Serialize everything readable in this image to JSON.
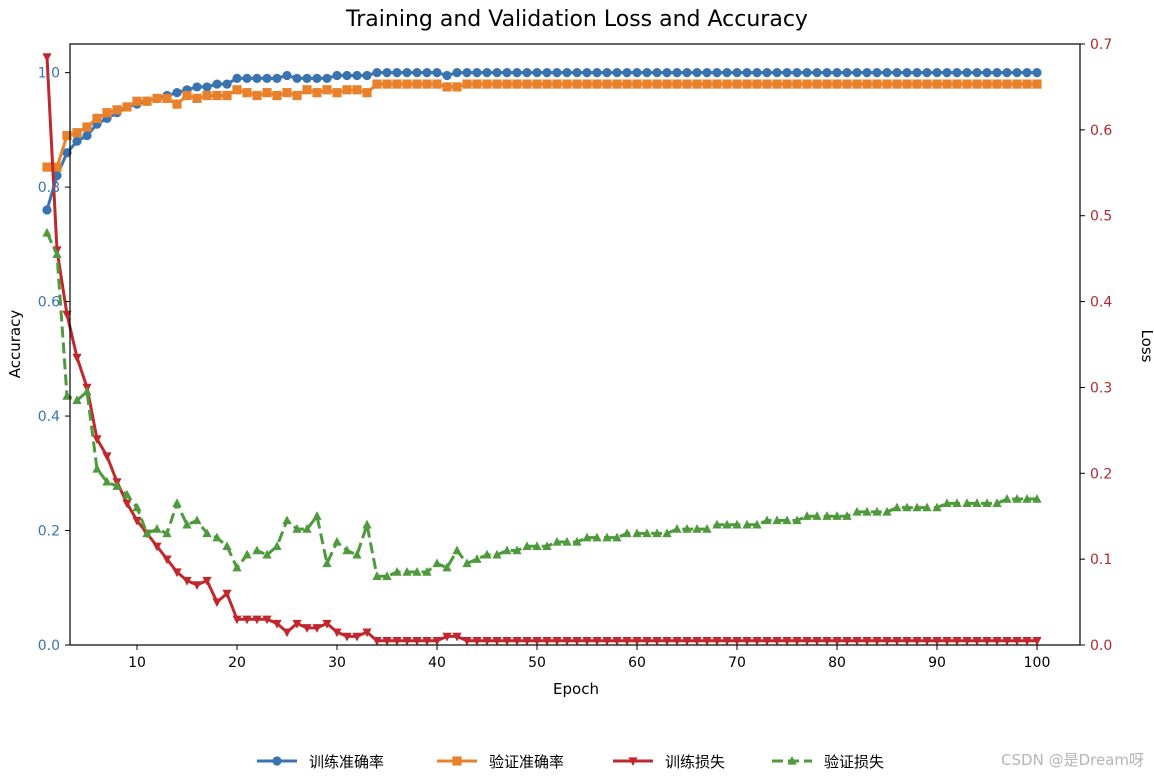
{
  "chart_data": {
    "type": "line",
    "title": "Training and Validation Loss and Accuracy",
    "xlabel": "Epoch",
    "ylabel_left": "Accuracy",
    "ylabel_right": "Loss",
    "xlim": [
      1,
      100
    ],
    "x_ticks": [
      10,
      20,
      30,
      40,
      50,
      60,
      70,
      80,
      90,
      100
    ],
    "ylim_left": [
      0,
      1.05
    ],
    "y_ticks_left": [
      "0.0",
      "0.2",
      "0.4",
      "0.6",
      "0.8",
      "1.0"
    ],
    "ylim_right": [
      0,
      0.7
    ],
    "y_ticks_right": [
      "0.0",
      "0.1",
      "0.2",
      "0.3",
      "0.4",
      "0.5",
      "0.6",
      "0.7"
    ],
    "grid": false,
    "legend_position": "bottom-center",
    "series": [
      {
        "name": "训练准确率",
        "axis": "left",
        "color": "#3a74b0",
        "marker": "circle",
        "dash": "solid",
        "values": [
          0.76,
          0.82,
          0.86,
          0.88,
          0.89,
          0.91,
          0.92,
          0.93,
          0.94,
          0.945,
          0.95,
          0.955,
          0.96,
          0.965,
          0.97,
          0.975,
          0.975,
          0.98,
          0.98,
          0.99,
          0.99,
          0.99,
          0.99,
          0.99,
          0.995,
          0.99,
          0.99,
          0.99,
          0.99,
          0.995,
          0.995,
          0.995,
          0.995,
          1.0,
          1.0,
          1.0,
          1.0,
          1.0,
          1.0,
          1.0,
          0.995,
          1.0,
          1.0,
          1.0,
          1.0,
          1.0,
          1.0,
          1.0,
          1.0,
          1.0,
          1.0,
          1.0,
          1.0,
          1.0,
          1.0,
          1.0,
          1.0,
          1.0,
          1.0,
          1.0,
          1.0,
          1.0,
          1.0,
          1.0,
          1.0,
          1.0,
          1.0,
          1.0,
          1.0,
          1.0,
          1.0,
          1.0,
          1.0,
          1.0,
          1.0,
          1.0,
          1.0,
          1.0,
          1.0,
          1.0,
          1.0,
          1.0,
          1.0,
          1.0,
          1.0,
          1.0,
          1.0,
          1.0,
          1.0,
          1.0,
          1.0,
          1.0,
          1.0,
          1.0,
          1.0,
          1.0,
          1.0,
          1.0,
          1.0,
          1.0
        ]
      },
      {
        "name": "验证准确率",
        "axis": "left",
        "color": "#e8812b",
        "marker": "square",
        "dash": "solid",
        "values": [
          0.835,
          0.835,
          0.89,
          0.895,
          0.905,
          0.92,
          0.93,
          0.935,
          0.94,
          0.95,
          0.95,
          0.955,
          0.955,
          0.945,
          0.96,
          0.955,
          0.96,
          0.96,
          0.96,
          0.97,
          0.965,
          0.96,
          0.965,
          0.96,
          0.965,
          0.96,
          0.97,
          0.965,
          0.97,
          0.965,
          0.97,
          0.97,
          0.965,
          0.98,
          0.98,
          0.98,
          0.98,
          0.98,
          0.98,
          0.98,
          0.975,
          0.975,
          0.98,
          0.98,
          0.98,
          0.98,
          0.98,
          0.98,
          0.98,
          0.98,
          0.98,
          0.98,
          0.98,
          0.98,
          0.98,
          0.98,
          0.98,
          0.98,
          0.98,
          0.98,
          0.98,
          0.98,
          0.98,
          0.98,
          0.98,
          0.98,
          0.98,
          0.98,
          0.98,
          0.98,
          0.98,
          0.98,
          0.98,
          0.98,
          0.98,
          0.98,
          0.98,
          0.98,
          0.98,
          0.98,
          0.98,
          0.98,
          0.98,
          0.98,
          0.98,
          0.98,
          0.98,
          0.98,
          0.98,
          0.98,
          0.98,
          0.98,
          0.98,
          0.98,
          0.98,
          0.98,
          0.98,
          0.98,
          0.98,
          0.98
        ]
      },
      {
        "name": "训练损失",
        "axis": "right",
        "color": "#c0282d",
        "marker": "triangle-down",
        "dash": "solid",
        "values": [
          0.685,
          0.46,
          0.385,
          0.335,
          0.3,
          0.24,
          0.22,
          0.19,
          0.165,
          0.145,
          0.13,
          0.115,
          0.1,
          0.085,
          0.075,
          0.07,
          0.075,
          0.05,
          0.06,
          0.03,
          0.03,
          0.03,
          0.03,
          0.025,
          0.015,
          0.025,
          0.02,
          0.02,
          0.025,
          0.015,
          0.01,
          0.01,
          0.015,
          0.005,
          0.005,
          0.005,
          0.005,
          0.005,
          0.005,
          0.005,
          0.01,
          0.01,
          0.005,
          0.005,
          0.005,
          0.005,
          0.005,
          0.005,
          0.005,
          0.005,
          0.005,
          0.005,
          0.005,
          0.005,
          0.005,
          0.005,
          0.005,
          0.005,
          0.005,
          0.005,
          0.005,
          0.005,
          0.005,
          0.005,
          0.005,
          0.005,
          0.005,
          0.005,
          0.005,
          0.005,
          0.005,
          0.005,
          0.005,
          0.005,
          0.005,
          0.005,
          0.005,
          0.005,
          0.005,
          0.005,
          0.005,
          0.005,
          0.005,
          0.005,
          0.005,
          0.005,
          0.005,
          0.005,
          0.005,
          0.005,
          0.005,
          0.005,
          0.005,
          0.005,
          0.005,
          0.005,
          0.005,
          0.005,
          0.005,
          0.005
        ]
      },
      {
        "name": "验证损失",
        "axis": "right",
        "color": "#4e9a3c",
        "marker": "triangle-up",
        "dash": "dashed",
        "values": [
          0.48,
          0.455,
          0.29,
          0.285,
          0.295,
          0.205,
          0.19,
          0.185,
          0.175,
          0.16,
          0.13,
          0.135,
          0.13,
          0.165,
          0.14,
          0.145,
          0.13,
          0.125,
          0.115,
          0.09,
          0.105,
          0.11,
          0.105,
          0.115,
          0.145,
          0.135,
          0.135,
          0.15,
          0.095,
          0.12,
          0.11,
          0.105,
          0.14,
          0.08,
          0.08,
          0.085,
          0.085,
          0.085,
          0.085,
          0.095,
          0.09,
          0.11,
          0.095,
          0.1,
          0.105,
          0.105,
          0.11,
          0.11,
          0.115,
          0.115,
          0.115,
          0.12,
          0.12,
          0.12,
          0.125,
          0.125,
          0.125,
          0.125,
          0.13,
          0.13,
          0.13,
          0.13,
          0.13,
          0.135,
          0.135,
          0.135,
          0.135,
          0.14,
          0.14,
          0.14,
          0.14,
          0.14,
          0.145,
          0.145,
          0.145,
          0.145,
          0.15,
          0.15,
          0.15,
          0.15,
          0.15,
          0.155,
          0.155,
          0.155,
          0.155,
          0.16,
          0.16,
          0.16,
          0.16,
          0.16,
          0.165,
          0.165,
          0.165,
          0.165,
          0.165,
          0.165,
          0.17,
          0.17,
          0.17,
          0.17
        ]
      }
    ]
  },
  "watermark": "CSDN @是Dream呀"
}
